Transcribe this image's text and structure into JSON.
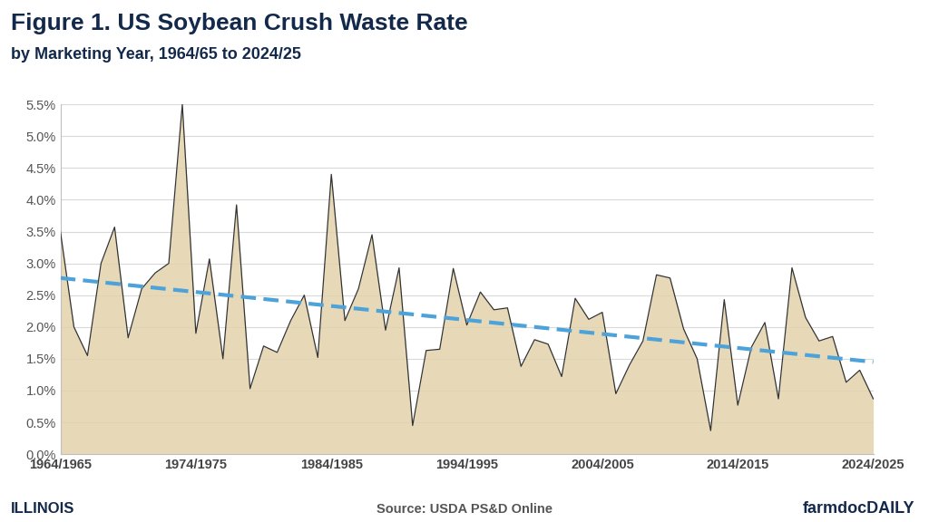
{
  "chart_data": {
    "type": "area",
    "title": "Figure 1. US Soybean Crush Waste Rate",
    "subtitle": "by Marketing Year, 1964/65 to 2024/25",
    "source": "Source: USDA PS&D Online",
    "branding": [
      "ILLINOIS",
      "farmdocDAILY"
    ],
    "categories": [
      "1964/1965",
      null,
      null,
      null,
      null,
      null,
      null,
      null,
      null,
      null,
      "1974/1975",
      null,
      null,
      null,
      null,
      null,
      null,
      null,
      null,
      null,
      "1984/1985",
      null,
      null,
      null,
      null,
      null,
      null,
      null,
      null,
      null,
      "1994/1995",
      null,
      null,
      null,
      null,
      null,
      null,
      null,
      null,
      null,
      "2004/2005",
      null,
      null,
      null,
      null,
      null,
      null,
      null,
      null,
      null,
      "2014/2015",
      null,
      null,
      null,
      null,
      null,
      null,
      null,
      null,
      null,
      "2024/2025"
    ],
    "values": [
      3.5,
      2.0,
      1.55,
      3.0,
      3.57,
      1.83,
      2.6,
      2.85,
      3.0,
      5.5,
      1.9,
      3.07,
      1.5,
      3.92,
      1.03,
      1.7,
      1.6,
      2.1,
      2.5,
      1.52,
      4.4,
      2.1,
      2.6,
      3.45,
      1.95,
      2.93,
      0.45,
      1.63,
      1.65,
      2.92,
      2.03,
      2.55,
      2.27,
      2.3,
      1.38,
      1.8,
      1.73,
      1.22,
      2.45,
      2.12,
      2.23,
      0.95,
      1.4,
      1.78,
      2.82,
      2.77,
      1.97,
      1.5,
      0.37,
      2.43,
      0.77,
      1.68,
      2.07,
      0.87,
      2.93,
      2.15,
      1.78,
      1.85,
      1.13,
      1.32,
      0.87
    ],
    "color": "#e3d3ab",
    "trend": {
      "values": [
        2.77,
        1.45
      ],
      "color": "#4da3d9",
      "line_style": "dashed"
    },
    "ylim": [
      0,
      5.5
    ],
    "yticks": [
      {
        "value": 0,
        "label": "0.0%"
      },
      {
        "value": 0.5,
        "label": "0.5%"
      },
      {
        "value": 1.0,
        "label": "1.0%"
      },
      {
        "value": 1.5,
        "label": "1.5%"
      },
      {
        "value": 2.0,
        "label": "2.0%"
      },
      {
        "value": 2.5,
        "label": "2.5%"
      },
      {
        "value": 3.0,
        "label": "3.0%"
      },
      {
        "value": 3.5,
        "label": "3.5%"
      },
      {
        "value": 4.0,
        "label": "4.0%"
      },
      {
        "value": 4.5,
        "label": "4.5%"
      },
      {
        "value": 5.0,
        "label": "5.0%"
      },
      {
        "value": 5.5,
        "label": "5.5%"
      }
    ],
    "grid": true
  }
}
